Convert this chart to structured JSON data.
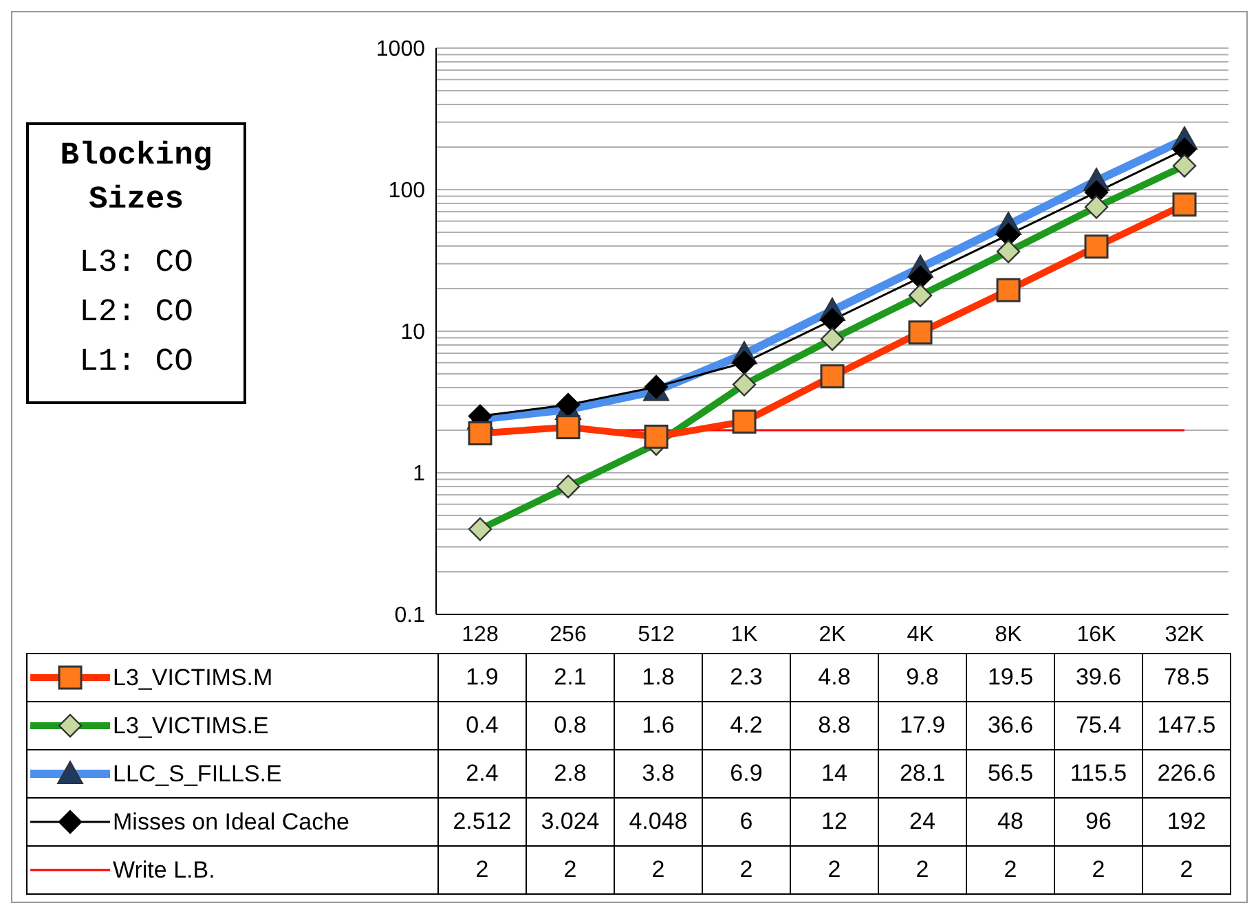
{
  "chart_data": {
    "type": "line",
    "categories": [
      "128",
      "256",
      "512",
      "1K",
      "2K",
      "4K",
      "8K",
      "16K",
      "32K"
    ],
    "series": [
      {
        "name": "L3_VICTIMS.M",
        "color": "#ff3300",
        "marker": "square",
        "values": [
          1.9,
          2.1,
          1.8,
          2.3,
          4.8,
          9.8,
          19.5,
          39.6,
          78.5
        ]
      },
      {
        "name": "L3_VICTIMS.E",
        "color": "#1e9a1e",
        "marker": "diamond",
        "values": [
          0.4,
          0.8,
          1.6,
          4.2,
          8.8,
          17.9,
          36.6,
          75.4,
          147.5
        ]
      },
      {
        "name": "LLC_S_FILLS.E",
        "color": "#4d8fec",
        "marker": "triangle",
        "values": [
          2.4,
          2.8,
          3.8,
          6.9,
          14,
          28.1,
          56.5,
          115.5,
          226.6
        ]
      },
      {
        "name": "Misses on Ideal Cache",
        "color": "#000000",
        "marker": "diamond",
        "values": [
          2.512,
          3.024,
          4.048,
          6,
          12,
          24,
          48,
          96,
          192
        ]
      },
      {
        "name": "Write L.B.",
        "color": "#ff0000",
        "marker": "none",
        "values": [
          2,
          2,
          2,
          2,
          2,
          2,
          2,
          2,
          2
        ]
      }
    ],
    "log": "y",
    "ylim": [
      0.1,
      1000
    ],
    "yticks": [
      0.1,
      {
        "value": 0.2,
        "label": null
      },
      {
        "value": 0.3,
        "label": null
      },
      {
        "value": 0.4,
        "label": null
      },
      {
        "value": 0.5,
        "label": null
      },
      {
        "value": 0.6,
        "label": null
      },
      {
        "value": 0.7,
        "label": null
      },
      {
        "value": 0.8,
        "label": null
      },
      {
        "value": 0.9,
        "label": null
      },
      1,
      {
        "value": 2,
        "label": null
      },
      {
        "value": 3,
        "label": null
      },
      {
        "value": 4,
        "label": null
      },
      {
        "value": 5,
        "label": null
      },
      {
        "value": 6,
        "label": null
      },
      {
        "value": 7,
        "label": null
      },
      {
        "value": 8,
        "label": null
      },
      {
        "value": 9,
        "label": null
      },
      10,
      {
        "value": 20,
        "label": null
      },
      {
        "value": 30,
        "label": null
      },
      {
        "value": 40,
        "label": null
      },
      {
        "value": 50,
        "label": null
      },
      {
        "value": 60,
        "label": null
      },
      {
        "value": 70,
        "label": null
      },
      {
        "value": 80,
        "label": null
      },
      {
        "value": 90,
        "label": null
      },
      100,
      {
        "value": 200,
        "label": null
      },
      {
        "value": 300,
        "label": null
      },
      {
        "value": 400,
        "label": null
      },
      {
        "value": 500,
        "label": null
      },
      {
        "value": 600,
        "label": null
      },
      {
        "value": 700,
        "label": null
      },
      {
        "value": 800,
        "label": null
      },
      {
        "value": 900,
        "label": null
      },
      1000
    ],
    "grid": "y",
    "legend": "bottom",
    "data_labels": true,
    "annotations": [
      "Blocking Sizes",
      "L3: CO",
      "L2: CO",
      "L1: CO"
    ]
  }
}
